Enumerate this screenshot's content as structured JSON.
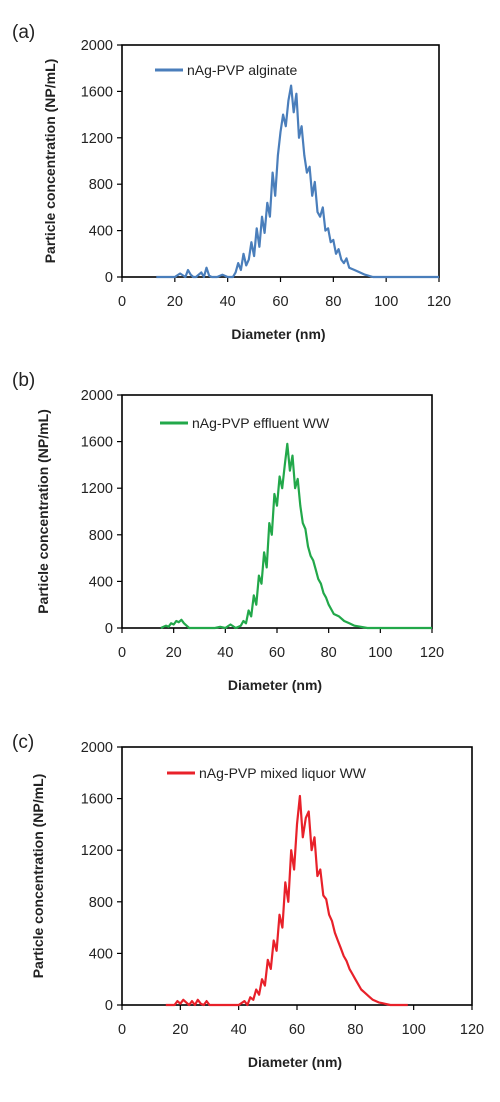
{
  "chart_data": [
    {
      "type": "line",
      "panel_label": "(a)",
      "xlabel": "Diameter (nm)",
      "ylabel": "Particle concentration (NP/mL)",
      "xlim": [
        0,
        120
      ],
      "ylim": [
        0,
        2000
      ],
      "xticks": [
        0,
        20,
        40,
        60,
        80,
        100,
        120
      ],
      "yticks": [
        0,
        400,
        800,
        1200,
        1600,
        2000
      ],
      "grid": false,
      "legend_position": "top-left",
      "series": [
        {
          "name": "nAg-PVP alginate",
          "color": "#4a7ebb",
          "x": [
            13,
            20,
            22,
            24,
            25,
            26,
            27,
            28,
            30,
            31,
            32,
            33,
            34,
            36,
            38,
            40,
            42,
            43,
            44,
            45,
            46,
            47,
            48,
            49,
            50,
            51,
            52,
            53,
            54,
            55,
            56,
            57,
            58,
            59,
            60,
            61,
            62,
            63,
            64,
            65,
            66,
            67,
            68,
            69,
            70,
            71,
            72,
            73,
            74,
            75,
            76,
            77,
            78,
            79,
            80,
            81,
            82,
            83,
            84,
            85,
            86,
            88,
            90,
            92,
            95,
            100,
            103,
            110,
            120
          ],
          "y": [
            0,
            0,
            30,
            0,
            60,
            20,
            0,
            0,
            40,
            0,
            80,
            10,
            0,
            0,
            20,
            0,
            0,
            40,
            120,
            60,
            200,
            100,
            150,
            300,
            180,
            420,
            260,
            520,
            380,
            640,
            520,
            900,
            700,
            1050,
            1250,
            1400,
            1300,
            1520,
            1650,
            1420,
            1580,
            1200,
            1300,
            1050,
            900,
            950,
            700,
            820,
            560,
            520,
            600,
            400,
            420,
            300,
            320,
            200,
            240,
            150,
            120,
            160,
            80,
            60,
            40,
            20,
            0,
            0,
            0,
            0,
            0
          ]
        }
      ]
    },
    {
      "type": "line",
      "panel_label": "(b)",
      "xlabel": "Diameter (nm)",
      "ylabel": "Particle concentration (NP/mL)",
      "xlim": [
        0,
        120
      ],
      "ylim": [
        0,
        2000
      ],
      "xticks": [
        0,
        20,
        40,
        60,
        80,
        100,
        120
      ],
      "yticks": [
        0,
        400,
        800,
        1200,
        1600,
        2000
      ],
      "grid": false,
      "legend_position": "top-left",
      "series": [
        {
          "name": "nAg-PVP effluent WW",
          "color": "#22a84a",
          "x": [
            15,
            17,
            18,
            19,
            20,
            21,
            22,
            23,
            24,
            25,
            26,
            28,
            32,
            36,
            38,
            40,
            42,
            44,
            46,
            47,
            48,
            49,
            50,
            51,
            52,
            53,
            54,
            55,
            56,
            57,
            58,
            59,
            60,
            61,
            62,
            63,
            64,
            65,
            66,
            67,
            68,
            69,
            70,
            71,
            72,
            73,
            74,
            75,
            76,
            77,
            78,
            79,
            80,
            81,
            82,
            84,
            86,
            88,
            90,
            95,
            100,
            110,
            120
          ],
          "y": [
            0,
            20,
            10,
            40,
            30,
            60,
            50,
            70,
            40,
            20,
            0,
            0,
            0,
            0,
            10,
            0,
            30,
            0,
            20,
            60,
            40,
            150,
            100,
            280,
            200,
            450,
            380,
            650,
            520,
            900,
            800,
            1150,
            1050,
            1300,
            1200,
            1400,
            1580,
            1350,
            1480,
            1200,
            1280,
            1050,
            900,
            850,
            700,
            620,
            580,
            500,
            420,
            380,
            300,
            260,
            200,
            160,
            120,
            100,
            60,
            40,
            20,
            0,
            0,
            0,
            0
          ]
        }
      ]
    },
    {
      "type": "line",
      "panel_label": "(c)",
      "xlabel": "Diameter (nm)",
      "ylabel": "Particle concentration (NP/mL)",
      "xlim": [
        0,
        120
      ],
      "ylim": [
        0,
        2000
      ],
      "xticks": [
        0,
        20,
        40,
        60,
        80,
        100,
        120
      ],
      "yticks": [
        0,
        400,
        800,
        1200,
        1600,
        2000
      ],
      "grid": false,
      "legend_position": "top-left",
      "series": [
        {
          "name": "nAg-PVP mixed liquor WW",
          "color": "#e8212a",
          "x": [
            15,
            18,
            19,
            20,
            21,
            22,
            23,
            24,
            25,
            26,
            27,
            28,
            29,
            30,
            32,
            36,
            40,
            42,
            43,
            44,
            45,
            46,
            47,
            48,
            49,
            50,
            51,
            52,
            53,
            54,
            55,
            56,
            57,
            58,
            59,
            60,
            61,
            62,
            63,
            64,
            65,
            66,
            67,
            68,
            69,
            70,
            71,
            72,
            73,
            74,
            75,
            76,
            77,
            78,
            79,
            80,
            81,
            82,
            83,
            84,
            85,
            86,
            88,
            90,
            92,
            95,
            98
          ],
          "y": [
            0,
            0,
            30,
            10,
            40,
            20,
            0,
            30,
            0,
            40,
            10,
            0,
            30,
            0,
            0,
            0,
            0,
            30,
            0,
            60,
            40,
            120,
            80,
            200,
            150,
            350,
            280,
            500,
            420,
            700,
            600,
            950,
            800,
            1200,
            1050,
            1400,
            1620,
            1300,
            1450,
            1500,
            1200,
            1300,
            1000,
            1050,
            850,
            820,
            700,
            650,
            560,
            500,
            440,
            380,
            340,
            280,
            240,
            200,
            160,
            120,
            100,
            80,
            60,
            40,
            20,
            10,
            0,
            0,
            0
          ]
        }
      ]
    }
  ]
}
